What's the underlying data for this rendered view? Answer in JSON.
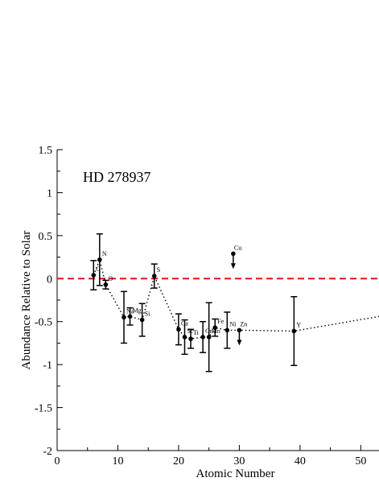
{
  "chart_data": {
    "type": "scatter",
    "annotation": "HD 278937",
    "xlabel": "Atomic Number",
    "ylabel": "Abundance Relative to Solar",
    "xlim": [
      0,
      53
    ],
    "ylim": [
      -2,
      1.5
    ],
    "x_ticks": [
      "0",
      "10",
      "20",
      "30",
      "40",
      "50"
    ],
    "y_ticks": [
      "1.5",
      "1",
      "0.5",
      "0",
      "-0.5",
      "-1",
      "-1.5",
      "-2"
    ],
    "reference_line": {
      "y": 0,
      "style": "dashed",
      "color": "#ee1111"
    },
    "trend_line": {
      "style": "dotted",
      "points": [
        [
          6,
          0.04
        ],
        [
          7,
          0.22
        ],
        [
          8,
          -0.07
        ],
        [
          11,
          -0.45
        ],
        [
          12,
          -0.44
        ],
        [
          14,
          -0.48
        ],
        [
          16,
          0.03
        ],
        [
          20,
          -0.59
        ],
        [
          21,
          -0.68
        ],
        [
          22,
          -0.7
        ],
        [
          24,
          -0.68
        ],
        [
          25,
          -0.68
        ],
        [
          26,
          -0.57
        ],
        [
          28,
          -0.6
        ],
        [
          30,
          -0.6
        ],
        [
          39,
          -0.61
        ],
        [
          53,
          -0.44
        ]
      ]
    },
    "points": [
      {
        "label": "C",
        "x": 6,
        "y": 0.04,
        "err": 0.17
      },
      {
        "label": "N",
        "x": 7,
        "y": 0.22,
        "err": 0.3
      },
      {
        "label": "O",
        "x": 8,
        "y": -0.07,
        "err": 0.05
      },
      {
        "label": "Na",
        "x": 11,
        "y": -0.45,
        "err": 0.3
      },
      {
        "label": "Mg",
        "x": 12,
        "y": -0.44,
        "err": 0.1
      },
      {
        "label": "Si",
        "x": 14,
        "y": -0.48,
        "err": 0.19
      },
      {
        "label": "S",
        "x": 16,
        "y": 0.03,
        "err": 0.14
      },
      {
        "label": "Ca",
        "x": 20,
        "y": -0.59,
        "err": 0.18
      },
      {
        "label": "Sc",
        "x": 21,
        "y": -0.68,
        "err": 0.2
      },
      {
        "label": "Ti",
        "x": 22,
        "y": -0.7,
        "err": 0.11
      },
      {
        "label": "Cr",
        "x": 24,
        "y": -0.68,
        "err": 0.18
      },
      {
        "label": "Mn",
        "x": 25,
        "y": -0.68,
        "err": 0.4
      },
      {
        "label": "Fe",
        "x": 26,
        "y": -0.57,
        "err": 0.1
      },
      {
        "label": "Ni",
        "x": 28,
        "y": -0.6,
        "err": 0.21
      },
      {
        "label": "Y",
        "x": 39,
        "y": -0.61,
        "err": 0.4
      }
    ],
    "upper_limits": [
      {
        "label": "Cu",
        "x": 29,
        "y": 0.29
      },
      {
        "label": "Zn",
        "x": 30,
        "y": -0.6
      }
    ]
  }
}
